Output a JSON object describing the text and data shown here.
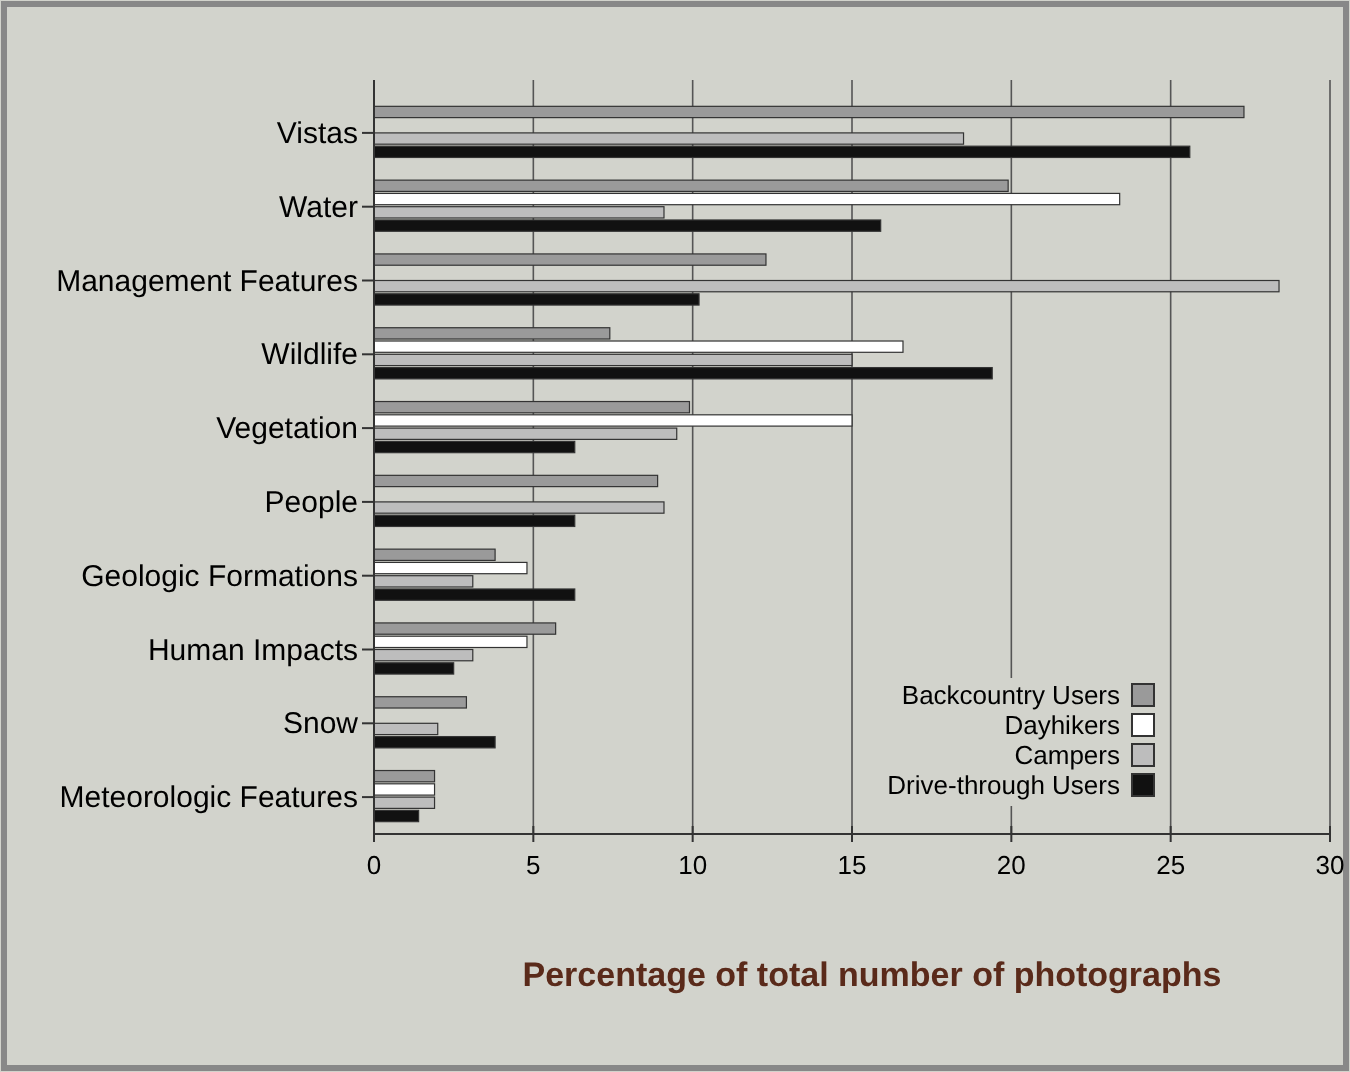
{
  "chart_data": {
    "type": "bar",
    "orientation": "horizontal",
    "xlabel": "Percentage of total number of photographs",
    "categories": [
      "Vistas",
      "Water",
      "Management Features",
      "Wildlife",
      "Vegetation",
      "People",
      "Geologic Formations",
      "Human Impacts",
      "Snow",
      "Meteorologic Features"
    ],
    "series": [
      {
        "name": "Backcountry Users",
        "color": "#9a9a9a",
        "values": [
          27.3,
          19.9,
          12.3,
          7.4,
          9.9,
          8.9,
          3.8,
          5.7,
          2.9,
          1.9
        ]
      },
      {
        "name": "Dayhikers",
        "color": "#ffffff",
        "values": [
          null,
          23.4,
          null,
          16.6,
          15.0,
          null,
          4.8,
          4.8,
          null,
          1.9
        ]
      },
      {
        "name": "Campers",
        "color": "#bdbdbd",
        "values": [
          18.5,
          9.1,
          28.4,
          15.0,
          9.5,
          9.1,
          3.1,
          3.1,
          2.0,
          1.9
        ]
      },
      {
        "name": "Drive-through Users",
        "color": "#111111",
        "values": [
          25.6,
          15.9,
          10.2,
          19.4,
          6.3,
          6.3,
          6.3,
          2.5,
          3.8,
          1.4
        ]
      }
    ],
    "xlim": [
      0,
      30
    ],
    "xticks": [
      0,
      5,
      10,
      15,
      20,
      25,
      30
    ],
    "grid": "x",
    "legend": "bottom right"
  }
}
